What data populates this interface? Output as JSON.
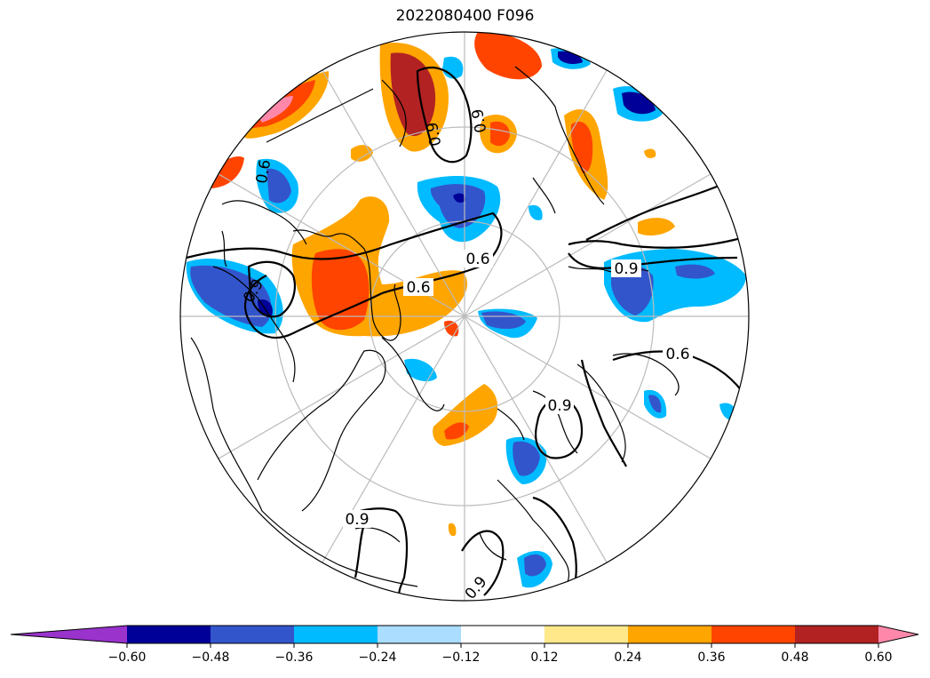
{
  "title": "2022080400 F096",
  "colorbar": {
    "levels": [
      -0.6,
      -0.48,
      -0.36,
      -0.24,
      -0.12,
      0.12,
      0.24,
      0.36,
      0.48,
      0.6
    ],
    "tick_labels": [
      "−0.60",
      "−0.48",
      "−0.36",
      "−0.24",
      "−0.12",
      "0.12",
      "0.24",
      "0.36",
      "0.48",
      "0.60"
    ],
    "colors": [
      "#9933cc",
      "#000099",
      "#3355cc",
      "#00bbff",
      "#aaddff",
      "#ffffff",
      "#ffe88a",
      "#ffa500",
      "#ff4400",
      "#b22222",
      "#ff88aa"
    ],
    "extend": "both"
  },
  "map": {
    "projection": "north polar stereographic",
    "graticule": true,
    "contour_labels": [
      "0.6",
      "0.6",
      "0.6",
      "0.6",
      "0.9",
      "0.9",
      "0.9",
      "0.9",
      "0.9",
      "0.9",
      "0.9"
    ]
  }
}
